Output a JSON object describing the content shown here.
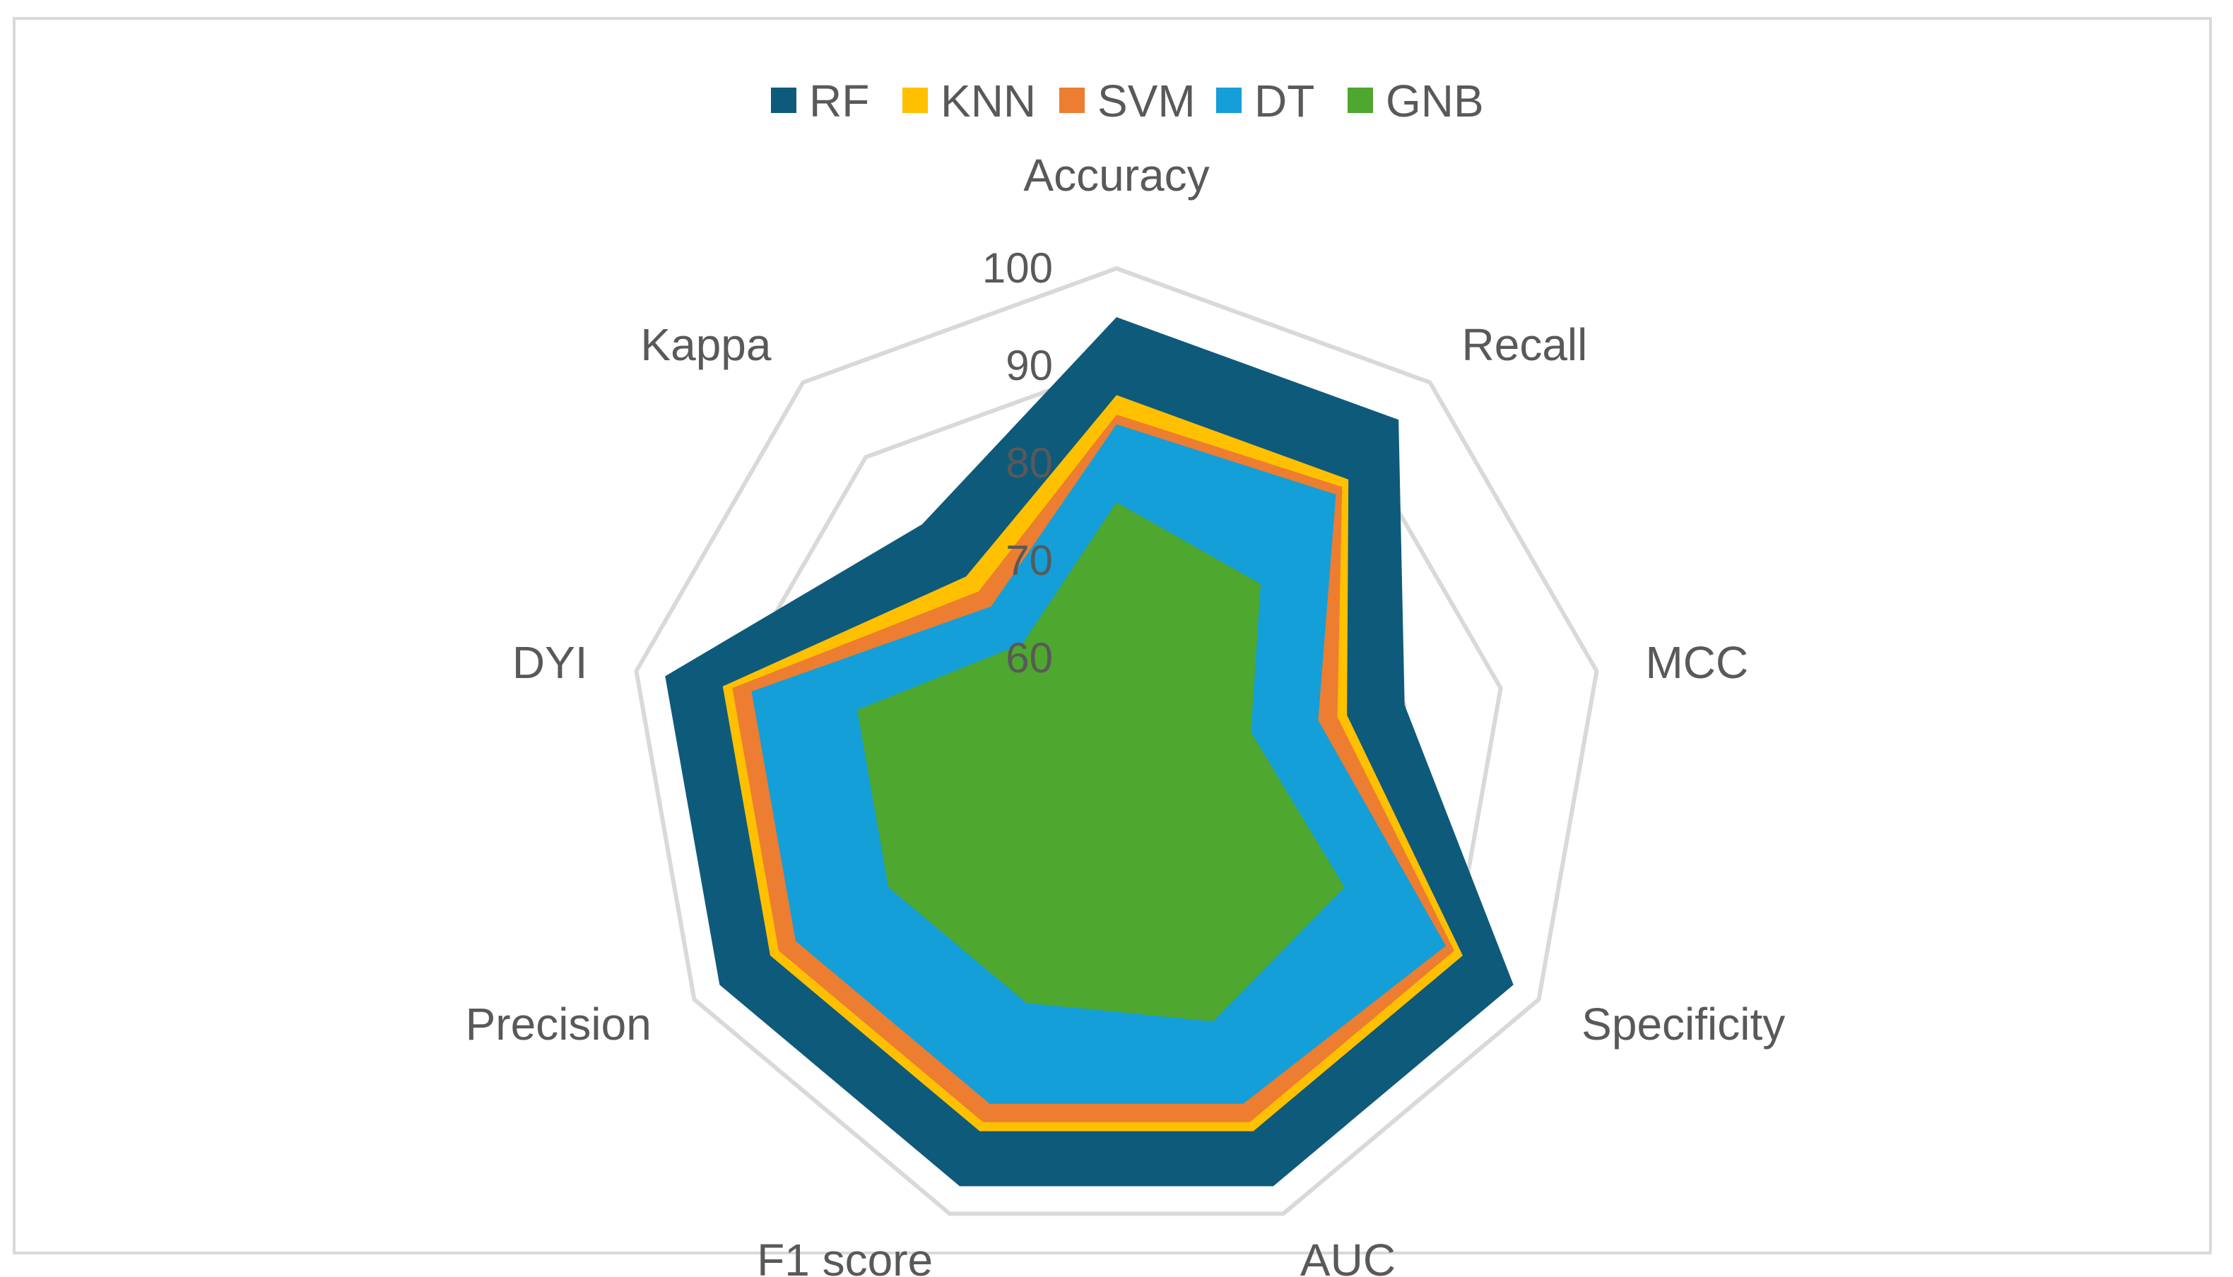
{
  "chart_data": {
    "type": "radar",
    "title": "",
    "axes": [
      "Accuracy",
      "Recall",
      "MCC",
      "Specificity",
      "AUC",
      "F1 score",
      "Precision",
      "DYI",
      "Kappa"
    ],
    "rlim": [
      50,
      100
    ],
    "ticks": [
      "60",
      "70",
      "80",
      "90",
      "100"
    ],
    "tick_values": [
      60,
      70,
      80,
      90,
      100
    ],
    "legend_position": "top",
    "series": [
      {
        "name": "RF",
        "color": "#0e5a7a",
        "values": [
          95,
          95,
          80,
          97,
          97,
          97,
          97,
          97,
          81
        ]
      },
      {
        "name": "KNN",
        "color": "#ffc000",
        "values": [
          87,
          87,
          74,
          91,
          91,
          91,
          91,
          91,
          74
        ]
      },
      {
        "name": "SVM",
        "color": "#ed7d31",
        "values": [
          85,
          86,
          73,
          90,
          90,
          90,
          90,
          90,
          72
        ]
      },
      {
        "name": "DT",
        "color": "#149fd8",
        "values": [
          84,
          85,
          71,
          89,
          88,
          88,
          88,
          88,
          70
        ]
      },
      {
        "name": "GNB",
        "color": "#4ea72e",
        "values": [
          76,
          73,
          64,
          77,
          79,
          77,
          77,
          77,
          65
        ]
      }
    ],
    "grid_color": "#d9d9d9"
  }
}
